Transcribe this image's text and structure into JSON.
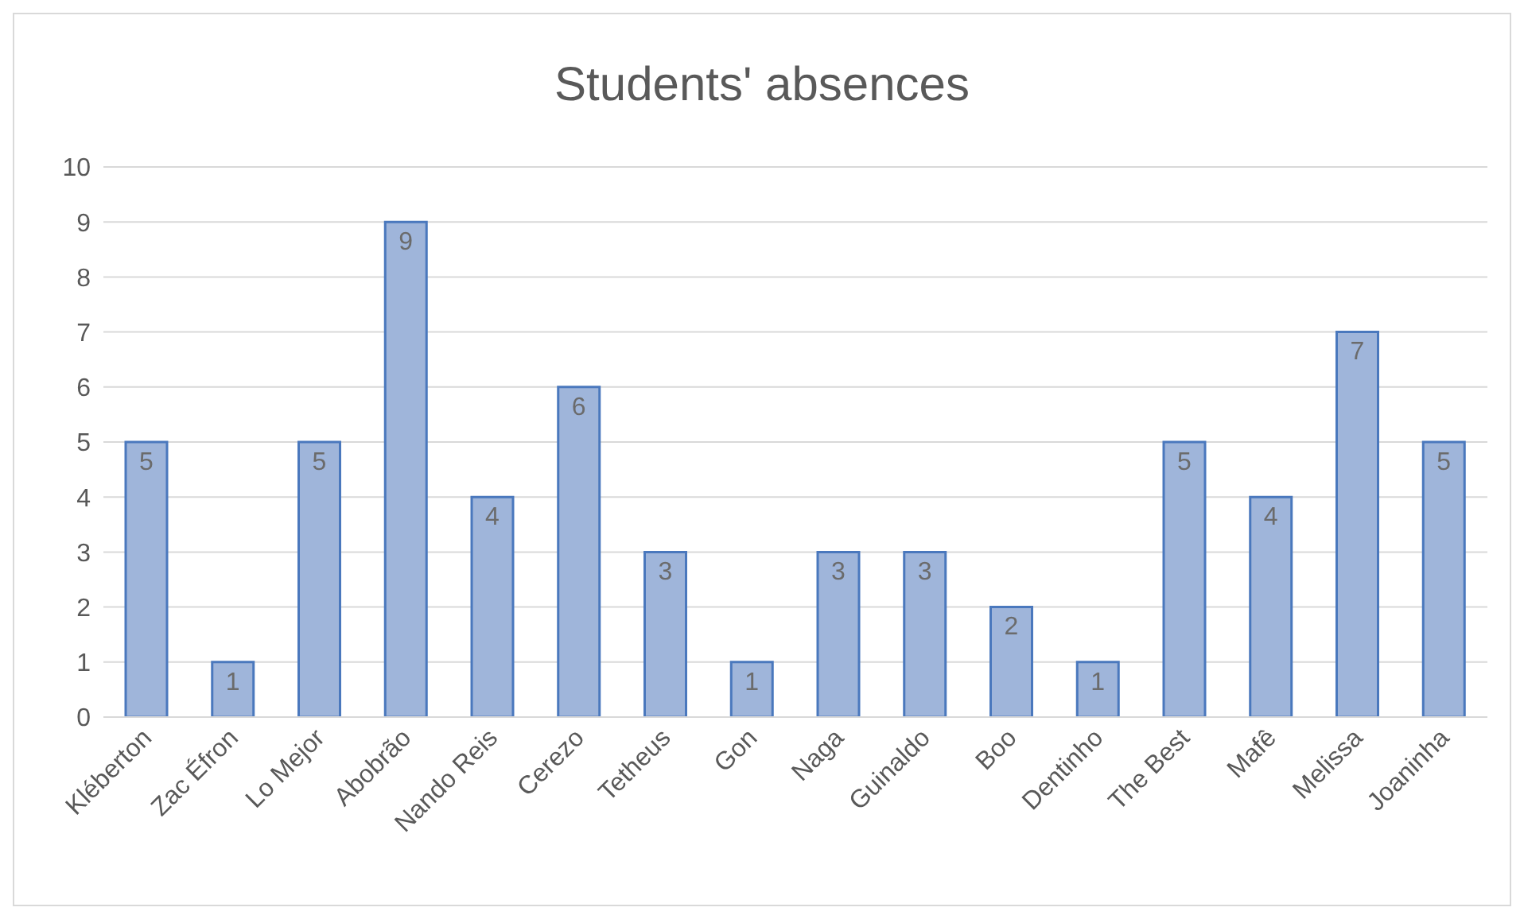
{
  "chart_data": {
    "type": "bar",
    "title": "Students' absences",
    "categories": [
      "Kléberton",
      "Zac Éfron",
      "Lo Mejor",
      "Abobrão",
      "Nando Reis",
      "Cerezo",
      "Tetheus",
      "Gon",
      "Naga",
      "Guinaldo",
      "Boo",
      "Dentinho",
      "The Best",
      "Mafê",
      "Melissa",
      "Joaninha"
    ],
    "values": [
      5,
      1,
      5,
      9,
      4,
      6,
      3,
      1,
      3,
      3,
      2,
      1,
      5,
      4,
      7,
      5
    ],
    "color": "#9fb5da",
    "ylim": [
      0,
      10
    ],
    "yticks": [
      0,
      1,
      2,
      3,
      4,
      5,
      6,
      7,
      8,
      9,
      10
    ],
    "grid": "y",
    "data_labels": true
  }
}
